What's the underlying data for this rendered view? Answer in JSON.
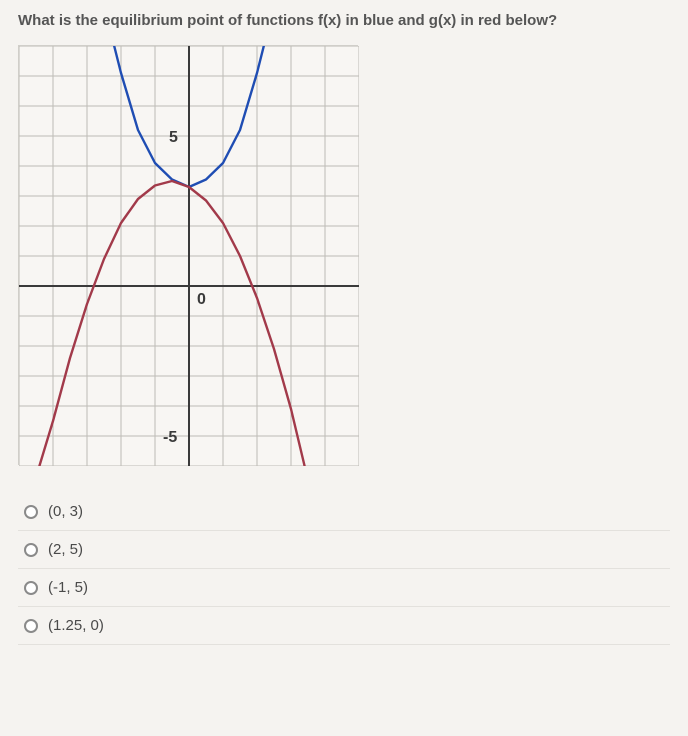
{
  "question": "What is the equilibrium point of functions f(x) in blue and g(x) in red below?",
  "chart": {
    "type": "line",
    "background_color": "#f8f6f3",
    "grid_color": "#bdbbb6",
    "axis_color": "#3a3a3a",
    "xlim": [
      -5,
      5
    ],
    "ylim": [
      -6,
      8
    ],
    "xtick_step": 1,
    "ytick_step": 1,
    "axis_labels": {
      "zero": "0",
      "y_pos": "5",
      "y_neg": "-5"
    },
    "series": [
      {
        "name": "f(x)",
        "color": "#1f4db3",
        "width": 2.4,
        "points": [
          [
            -2.2,
            8
          ],
          [
            -2,
            7.1
          ],
          [
            -1.5,
            5.2
          ],
          [
            -1,
            4.1
          ],
          [
            -0.5,
            3.55
          ],
          [
            0,
            3.3
          ],
          [
            0.5,
            3.55
          ],
          [
            1,
            4.1
          ],
          [
            1.5,
            5.2
          ],
          [
            2,
            7.1
          ],
          [
            2.2,
            8
          ]
        ]
      },
      {
        "name": "g(x)",
        "color": "#a23a4a",
        "width": 2.4,
        "points": [
          [
            -4.4,
            -6
          ],
          [
            -4,
            -4.5
          ],
          [
            -3.5,
            -2.4
          ],
          [
            -3,
            -0.6
          ],
          [
            -2.5,
            0.9
          ],
          [
            -2,
            2.1
          ],
          [
            -1.5,
            2.9
          ],
          [
            -1,
            3.35
          ],
          [
            -0.5,
            3.5
          ],
          [
            0,
            3.3
          ],
          [
            0.5,
            2.85
          ],
          [
            1,
            2.1
          ],
          [
            1.5,
            1.0
          ],
          [
            2,
            -0.4
          ],
          [
            2.5,
            -2.1
          ],
          [
            3,
            -4.1
          ],
          [
            3.4,
            -6
          ]
        ]
      }
    ]
  },
  "options": [
    {
      "label": "(0, 3)"
    },
    {
      "label": "(2, 5)"
    },
    {
      "label": "(-1, 5)"
    },
    {
      "label": "(1.25, 0)"
    }
  ]
}
